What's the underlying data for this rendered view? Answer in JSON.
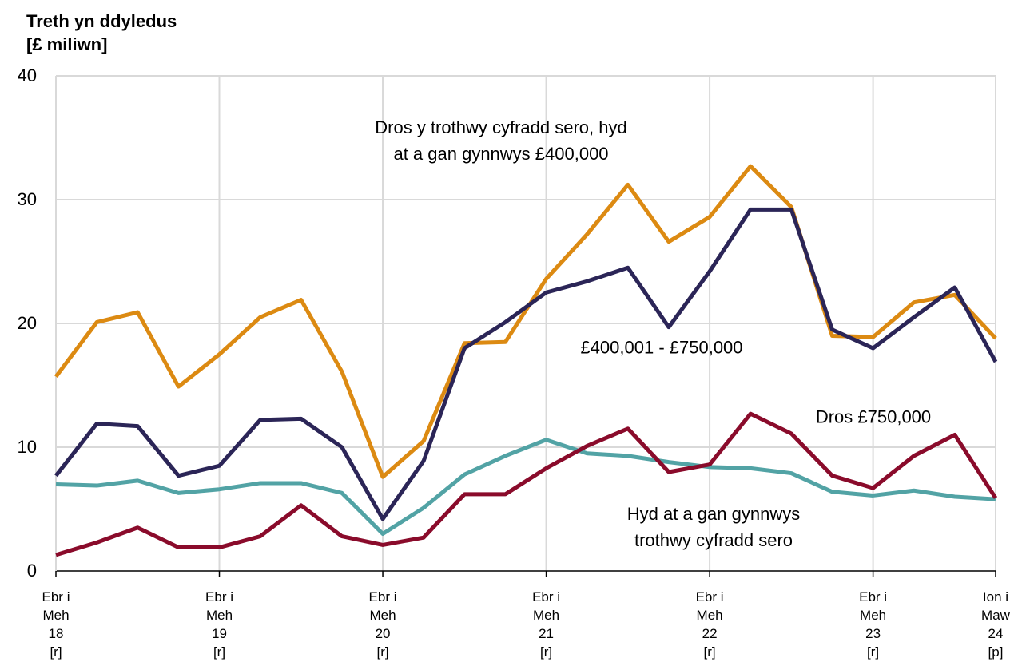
{
  "chart_data": {
    "type": "line",
    "y_label": "Treth yn ddyledus\n[£ miliwn]",
    "categories": [
      "Ebr i\nMeh\n18\n[r]",
      null,
      null,
      null,
      "Ebr i\nMeh\n19\n[r]",
      null,
      null,
      null,
      "Ebr i\nMeh\n20\n[r]",
      null,
      null,
      null,
      "Ebr i\nMeh\n21\n[r]",
      null,
      null,
      null,
      "Ebr i\nMeh\n22\n[r]",
      null,
      null,
      null,
      "Ebr i\nMeh\n23\n[r]",
      null,
      null,
      "Ion i\nMaw\n24\n[p]"
    ],
    "series": [
      {
        "name": "Dros y trothwy cyfradd sero, hyd\nat a gan gynnwys £400,000",
        "color": "#dc8a12",
        "values": [
          15.7,
          20.1,
          20.9,
          14.9,
          17.5,
          20.5,
          21.9,
          16.1,
          7.6,
          10.5,
          18.4,
          18.5,
          23.6,
          27.2,
          31.2,
          26.6,
          28.6,
          32.7,
          29.4,
          19.0,
          18.9,
          21.7,
          22.3,
          18.8
        ]
      },
      {
        "name": "£400,001 - £750,000",
        "color": "#2b2557",
        "values": [
          7.7,
          11.9,
          11.7,
          7.7,
          8.5,
          12.2,
          12.3,
          10.0,
          4.2,
          8.9,
          18.0,
          20.1,
          22.5,
          23.4,
          24.5,
          19.7,
          24.2,
          29.2,
          29.2,
          19.5,
          18.0,
          20.5,
          22.9,
          16.9
        ]
      },
      {
        "name": "Hyd at a gan gynnwys\ntrothwy cyfradd sero",
        "color": "#52a3a5",
        "values": [
          7.0,
          6.9,
          7.3,
          6.3,
          6.6,
          7.1,
          7.1,
          6.3,
          3.0,
          5.1,
          7.8,
          9.3,
          10.6,
          9.5,
          9.3,
          8.8,
          8.4,
          8.3,
          7.9,
          6.4,
          6.1,
          6.5,
          6.0,
          5.8
        ]
      },
      {
        "name": "Dros £750,000",
        "color": "#8a0b2b",
        "values": [
          1.3,
          2.3,
          3.5,
          1.9,
          1.9,
          2.8,
          5.3,
          2.8,
          2.1,
          2.7,
          6.2,
          6.2,
          8.3,
          10.1,
          11.5,
          8.0,
          8.6,
          12.7,
          11.1,
          7.7,
          6.7,
          9.3,
          11.0,
          5.9
        ]
      }
    ],
    "ylim": [
      0,
      40
    ],
    "yticks": [
      0,
      10,
      20,
      30,
      40
    ],
    "grid": true
  }
}
